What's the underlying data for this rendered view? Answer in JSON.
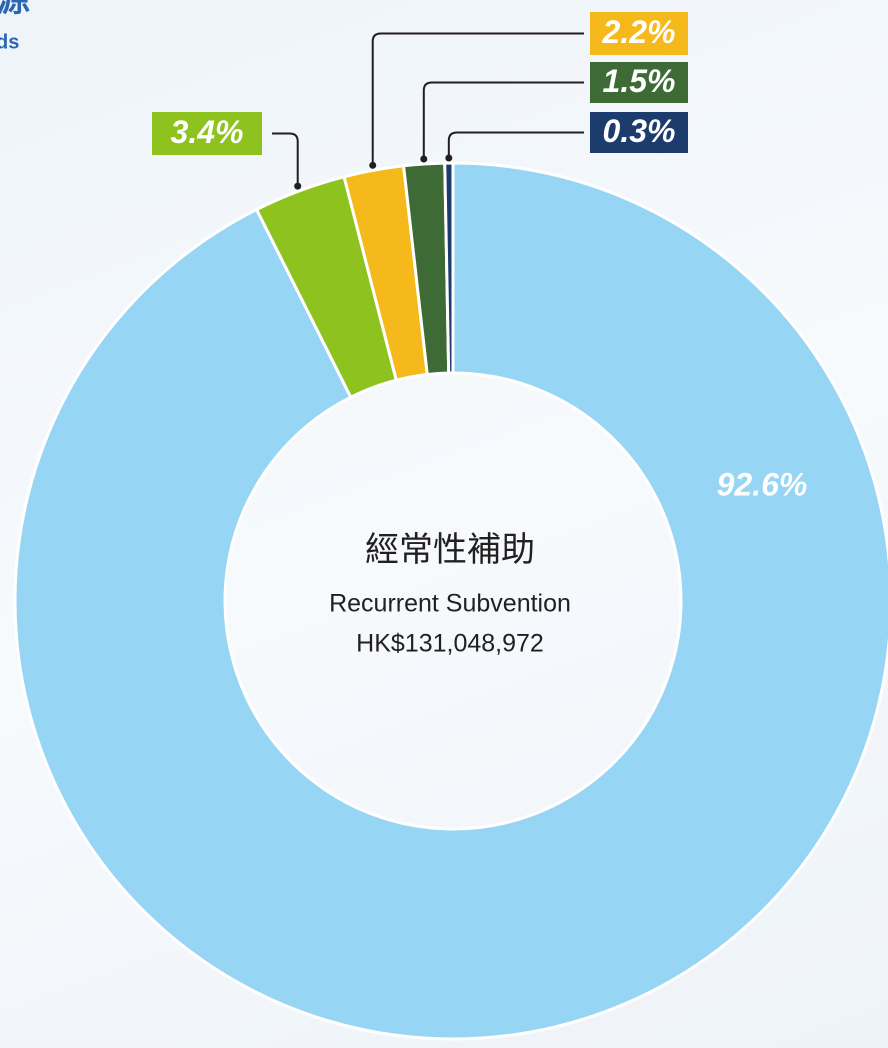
{
  "chart_data": {
    "type": "pie",
    "donut": true,
    "title": "源",
    "subtitle": "ds",
    "center_text": [
      "經常性補助",
      "Recurrent Subvention",
      "HK$131,048,972"
    ],
    "categories": [
      null,
      null,
      null,
      null,
      null
    ],
    "values": [
      92.6,
      3.4,
      2.2,
      1.5,
      0.3
    ],
    "value_labels": [
      "92.6%",
      "3.4%",
      "2.2%",
      "1.5%",
      "0.3%"
    ],
    "colors": [
      "#97d5f4",
      "#8dc21f",
      "#f5b91c",
      "#3e6b35",
      "#1d3c6e"
    ]
  }
}
